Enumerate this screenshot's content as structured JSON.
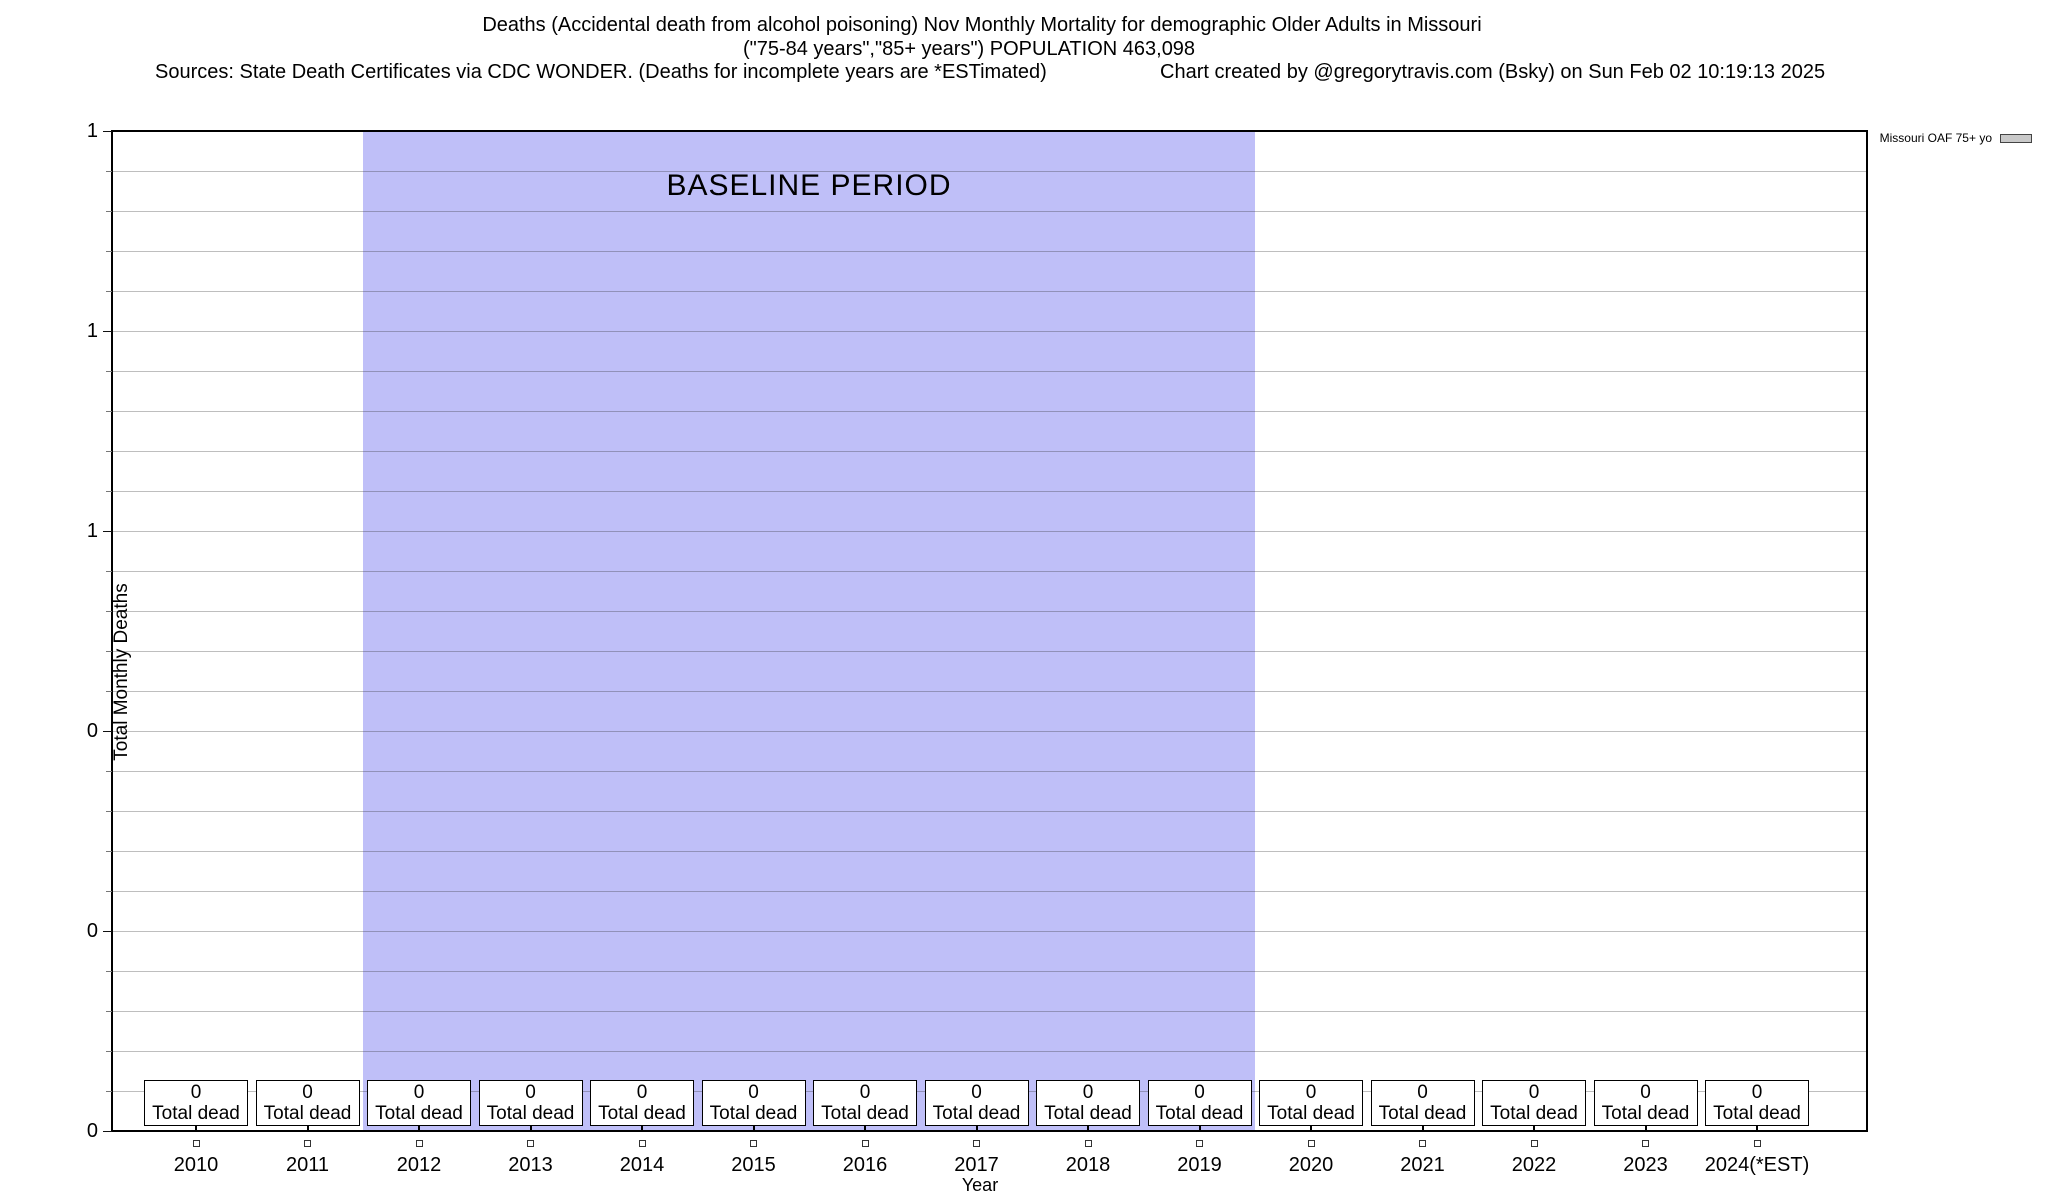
{
  "header": {
    "title_line1": "Deaths (Accidental death from alcohol poisoning) Nov Monthly Mortality for demographic Older Adults in Missouri",
    "title_line2": "(\"75-84 years\",\"85+ years\") POPULATION 463,098",
    "sources": "Sources: State Death Certificates via CDC WONDER. (Deaths for incomplete years are *ESTimated)",
    "credit": "Chart created by @gregorytravis.com (Bsky) on Sun Feb 02 10:19:13 2025"
  },
  "legend": {
    "label": "Missouri OAF 75+ yo",
    "swatch_color": "#c9c9c9"
  },
  "chart_data": {
    "type": "bar",
    "title": "Deaths (Accidental death from alcohol poisoning) Nov Monthly Mortality for demographic Older Adults in Missouri",
    "subtitle": "(\"75-84 years\",\"85+ years\") POPULATION 463,098",
    "xlabel": "Year",
    "ylabel": "Total Monthly Deaths",
    "ylim": [
      0,
      1
    ],
    "ytick_labels": [
      "1",
      "1",
      "1",
      "0",
      "0",
      "0"
    ],
    "ytick_values": [
      1.0,
      0.8,
      0.6,
      0.4,
      0.2,
      0.0
    ],
    "grid": true,
    "legend_position": "top-right-outside",
    "categories": [
      "2010",
      "2011",
      "2012",
      "2013",
      "2014",
      "2015",
      "2016",
      "2017",
      "2018",
      "2019",
      "2020",
      "2021",
      "2022",
      "2023",
      "2024(*EST)"
    ],
    "series": [
      {
        "name": "Missouri OAF 75+ yo",
        "values": [
          0,
          0,
          0,
          0,
          0,
          0,
          0,
          0,
          0,
          0,
          0,
          0,
          0,
          0,
          0
        ]
      }
    ],
    "point_labels": {
      "value_text": "0",
      "caption_text": "Total dead"
    },
    "annotations": [
      {
        "text": "BASELINE PERIOD",
        "from": "2012",
        "to": "2019",
        "band_color": "#bfbff8"
      }
    ]
  },
  "colors": {
    "band": "#bfbff8",
    "grid": "#ababab",
    "plot_border": "#000000"
  }
}
